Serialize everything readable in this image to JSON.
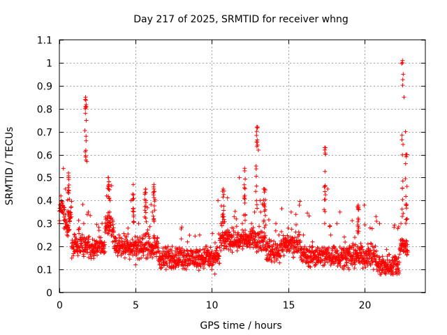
{
  "chart_data": {
    "type": "scatter",
    "title": "Day 217 of 2025, SRMTID for receiver whng",
    "xlabel": "GPS time / hours",
    "ylabel": "SRMTID / TECUs",
    "xlim": [
      0,
      24
    ],
    "ylim": [
      0,
      1.1
    ],
    "grid": true,
    "marker": "+",
    "marker_color": "#ff0000",
    "x_ticks": [
      0,
      5,
      10,
      15,
      20
    ],
    "x_tick_labels": [
      "0",
      "5",
      "10",
      "15",
      "20"
    ],
    "y_ticks": [
      0,
      0.1,
      0.2,
      0.3,
      0.4,
      0.5,
      0.6,
      0.7,
      0.8,
      0.9,
      1.0,
      1.1
    ],
    "y_tick_labels": [
      "0",
      "0.1",
      "0.2",
      "0.3",
      "0.4",
      "0.5",
      "0.6",
      "0.7",
      "0.8",
      "0.9",
      "1",
      "1.1"
    ],
    "series": [
      {
        "name": "SRMTID",
        "description": "Approximately 1800 scattered points, one every 30 s; main cloud 0.05-0.45 TECU with spikes near 1.7 h (~0.84), 3.2 h (~0.5), 13 h (~0.72), 17.4 h (~0.63) and 22.5 h (~1.0)",
        "x": [
          0.0,
          0.1,
          0.2,
          0.3,
          0.4,
          0.5,
          0.6,
          0.7,
          0.8,
          1.0,
          1.2,
          1.4,
          1.6,
          1.7,
          1.72,
          1.75,
          1.8,
          1.9,
          2.0,
          2.2,
          2.4,
          2.6,
          2.8,
          3.0,
          3.1,
          3.2,
          3.25,
          3.3,
          3.5,
          3.7,
          3.9,
          4.1,
          4.3,
          4.5,
          4.7,
          4.9,
          5.0,
          5.2,
          5.4,
          5.6,
          5.8,
          6.0,
          6.1,
          6.2,
          6.4,
          6.6,
          6.8,
          7.0,
          7.2,
          7.4,
          7.6,
          7.8,
          8.0,
          8.2,
          8.4,
          8.6,
          8.8,
          9.0,
          9.2,
          9.4,
          9.6,
          9.8,
          10.0,
          10.2,
          10.4,
          10.6,
          10.8,
          11.0,
          11.2,
          11.4,
          11.6,
          11.8,
          12.0,
          12.2,
          12.4,
          12.6,
          12.8,
          12.9,
          13.0,
          13.05,
          13.2,
          13.4,
          13.6,
          13.8,
          14.0,
          14.2,
          14.4,
          14.6,
          14.8,
          15.0,
          15.2,
          15.4,
          15.6,
          15.8,
          16.0,
          16.2,
          16.4,
          16.6,
          16.8,
          17.0,
          17.2,
          17.4,
          17.45,
          17.6,
          17.8,
          18.0,
          18.2,
          18.4,
          18.6,
          18.8,
          19.0,
          19.2,
          19.4,
          19.6,
          19.8,
          20.0,
          20.2,
          20.4,
          20.6,
          20.8,
          21.0,
          21.2,
          21.4,
          21.6,
          21.8,
          22.0,
          22.2,
          22.4,
          22.5,
          22.55,
          22.6,
          22.7,
          22.8
        ],
        "y": [
          0.3,
          0.42,
          0.38,
          0.28,
          0.45,
          0.25,
          0.5,
          0.35,
          0.2,
          0.22,
          0.18,
          0.24,
          0.3,
          0.84,
          0.81,
          0.68,
          0.57,
          0.35,
          0.2,
          0.17,
          0.22,
          0.27,
          0.3,
          0.28,
          0.42,
          0.5,
          0.47,
          0.35,
          0.22,
          0.18,
          0.25,
          0.2,
          0.15,
          0.28,
          0.4,
          0.2,
          0.12,
          0.3,
          0.18,
          0.25,
          0.15,
          0.2,
          0.35,
          0.45,
          0.22,
          0.15,
          0.12,
          0.1,
          0.14,
          0.2,
          0.18,
          0.15,
          0.12,
          0.18,
          0.22,
          0.16,
          0.14,
          0.18,
          0.25,
          0.15,
          0.2,
          0.12,
          0.1,
          0.08,
          0.4,
          0.3,
          0.22,
          0.25,
          0.2,
          0.28,
          0.32,
          0.5,
          0.3,
          0.25,
          0.22,
          0.3,
          0.35,
          0.55,
          0.72,
          0.62,
          0.35,
          0.45,
          0.22,
          0.15,
          0.2,
          0.3,
          0.25,
          0.18,
          0.2,
          0.28,
          0.35,
          0.22,
          0.18,
          0.2,
          0.25,
          0.15,
          0.18,
          0.22,
          0.12,
          0.15,
          0.18,
          0.3,
          0.63,
          0.45,
          0.25,
          0.2,
          0.3,
          0.35,
          0.15,
          0.18,
          0.1,
          0.12,
          0.18,
          0.15,
          0.2,
          0.38,
          0.15,
          0.12,
          0.1,
          0.18,
          0.3,
          0.1,
          0.08,
          0.1,
          0.12,
          0.15,
          0.12,
          0.3,
          1.0,
          0.95,
          0.85,
          0.7,
          0.6
        ]
      }
    ]
  }
}
